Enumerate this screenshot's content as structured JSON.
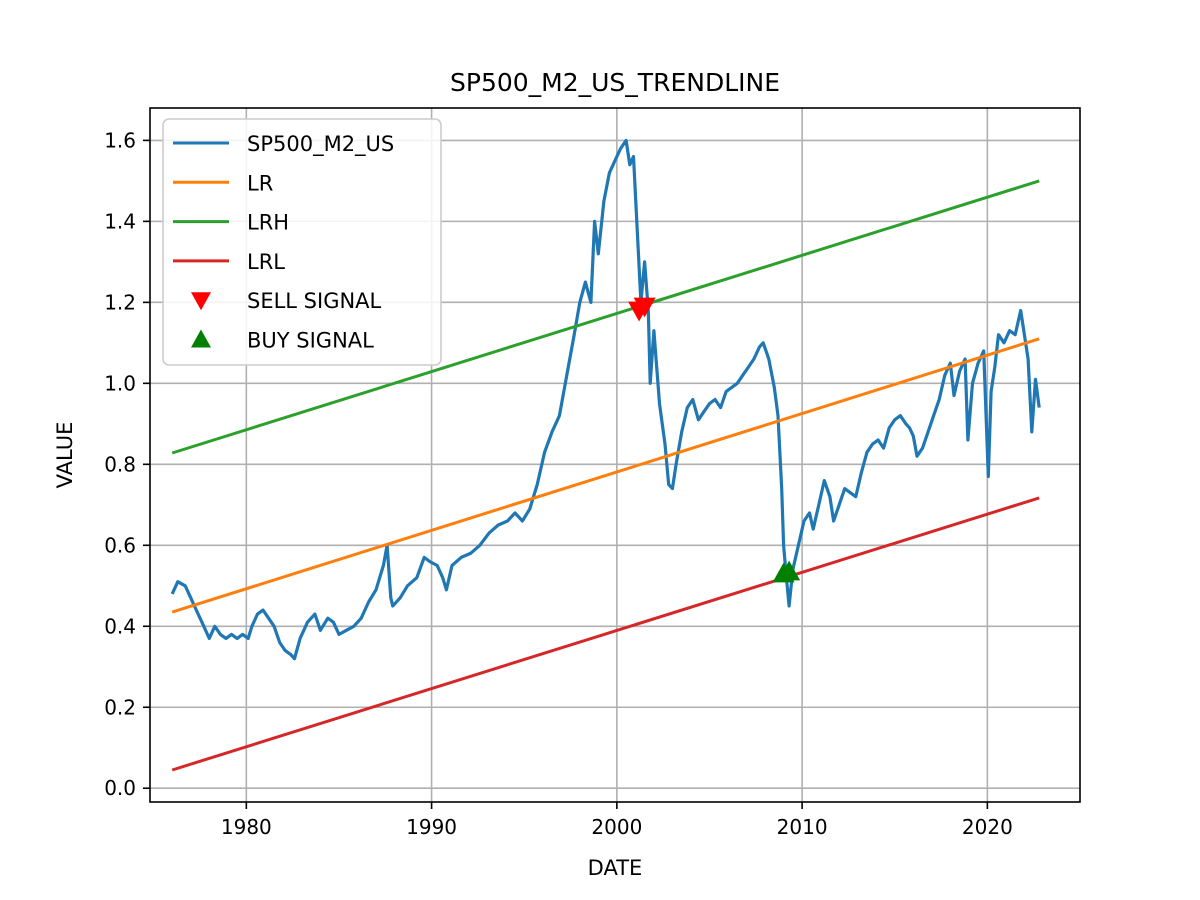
{
  "chart_data": {
    "type": "line",
    "title": "SP500_M2_US_TRENDLINE",
    "xlabel": "DATE",
    "ylabel": "VALUE",
    "xlim": [
      1974.8,
      2025.0
    ],
    "ylim": [
      -0.034,
      1.68
    ],
    "x_ticks": [
      1980,
      1990,
      2000,
      2010,
      2020
    ],
    "y_ticks": [
      0.0,
      0.2,
      0.4,
      0.6,
      0.8,
      1.0,
      1.2,
      1.4,
      1.6
    ],
    "y_tick_labels": [
      "0.0",
      "0.2",
      "0.4",
      "0.6",
      "0.8",
      "1.0",
      "1.2",
      "1.4",
      "1.6"
    ],
    "grid": true,
    "legend_position": "top-left",
    "series": [
      {
        "name": "SP500_M2_US",
        "color": "#1f77b4",
        "kind": "line",
        "x": [
          1976.0,
          1976.3,
          1976.7,
          1977.0,
          1977.3,
          1977.6,
          1978.0,
          1978.3,
          1978.6,
          1978.9,
          1979.2,
          1979.5,
          1979.8,
          1980.1,
          1980.3,
          1980.6,
          1980.9,
          1981.2,
          1981.5,
          1981.8,
          1982.1,
          1982.4,
          1982.6,
          1982.9,
          1983.3,
          1983.7,
          1984.0,
          1984.4,
          1984.7,
          1985.0,
          1985.4,
          1985.8,
          1986.2,
          1986.6,
          1987.0,
          1987.4,
          1987.6,
          1987.8,
          1987.9,
          1988.3,
          1988.7,
          1989.2,
          1989.6,
          1989.9,
          1990.3,
          1990.6,
          1990.8,
          1991.1,
          1991.6,
          1992.1,
          1992.6,
          1993.1,
          1993.6,
          1994.1,
          1994.5,
          1994.9,
          1995.3,
          1995.7,
          1996.1,
          1996.5,
          1996.9,
          1997.3,
          1997.7,
          1998.0,
          1998.3,
          1998.6,
          1998.8,
          1999.0,
          1999.3,
          1999.6,
          1999.9,
          2000.2,
          2000.5,
          2000.7,
          2000.9,
          2001.1,
          2001.3,
          2001.5,
          2001.7,
          2001.8,
          2002.0,
          2002.3,
          2002.6,
          2002.8,
          2003.0,
          2003.2,
          2003.5,
          2003.8,
          2004.1,
          2004.4,
          2004.7,
          2005.0,
          2005.3,
          2005.6,
          2005.9,
          2006.2,
          2006.5,
          2006.8,
          2007.1,
          2007.4,
          2007.7,
          2007.9,
          2008.2,
          2008.5,
          2008.7,
          2008.9,
          2009.0,
          2009.15,
          2009.3,
          2009.5,
          2009.8,
          2010.1,
          2010.4,
          2010.6,
          2010.9,
          2011.2,
          2011.5,
          2011.7,
          2012.0,
          2012.3,
          2012.6,
          2012.9,
          2013.2,
          2013.5,
          2013.8,
          2014.1,
          2014.4,
          2014.7,
          2015.0,
          2015.3,
          2015.6,
          2015.8,
          2016.0,
          2016.2,
          2016.5,
          2016.8,
          2017.1,
          2017.4,
          2017.7,
          2018.0,
          2018.2,
          2018.5,
          2018.8,
          2018.95,
          2019.2,
          2019.5,
          2019.8,
          2020.05,
          2020.2,
          2020.4,
          2020.6,
          2020.9,
          2021.2,
          2021.5,
          2021.8,
          2022.0,
          2022.2,
          2022.4,
          2022.6,
          2022.8
        ],
        "y": [
          0.48,
          0.51,
          0.5,
          0.47,
          0.44,
          0.41,
          0.37,
          0.4,
          0.38,
          0.37,
          0.38,
          0.37,
          0.38,
          0.37,
          0.4,
          0.43,
          0.44,
          0.42,
          0.4,
          0.36,
          0.34,
          0.33,
          0.32,
          0.37,
          0.41,
          0.43,
          0.39,
          0.42,
          0.41,
          0.38,
          0.39,
          0.4,
          0.42,
          0.46,
          0.49,
          0.55,
          0.6,
          0.47,
          0.45,
          0.47,
          0.5,
          0.52,
          0.57,
          0.56,
          0.55,
          0.52,
          0.49,
          0.55,
          0.57,
          0.58,
          0.6,
          0.63,
          0.65,
          0.66,
          0.68,
          0.66,
          0.69,
          0.75,
          0.83,
          0.88,
          0.92,
          1.02,
          1.12,
          1.2,
          1.25,
          1.2,
          1.4,
          1.32,
          1.45,
          1.52,
          1.55,
          1.58,
          1.6,
          1.54,
          1.56,
          1.38,
          1.2,
          1.3,
          1.18,
          1.0,
          1.13,
          0.95,
          0.85,
          0.75,
          0.74,
          0.8,
          0.88,
          0.94,
          0.96,
          0.91,
          0.93,
          0.95,
          0.96,
          0.94,
          0.98,
          0.99,
          1.0,
          1.02,
          1.04,
          1.06,
          1.09,
          1.1,
          1.06,
          0.99,
          0.92,
          0.74,
          0.6,
          0.52,
          0.45,
          0.54,
          0.6,
          0.66,
          0.68,
          0.64,
          0.7,
          0.76,
          0.72,
          0.66,
          0.7,
          0.74,
          0.73,
          0.72,
          0.78,
          0.83,
          0.85,
          0.86,
          0.84,
          0.89,
          0.91,
          0.92,
          0.9,
          0.89,
          0.87,
          0.82,
          0.84,
          0.88,
          0.92,
          0.96,
          1.02,
          1.05,
          0.97,
          1.03,
          1.06,
          0.86,
          1.0,
          1.05,
          1.08,
          0.77,
          0.98,
          1.04,
          1.12,
          1.1,
          1.13,
          1.12,
          1.18,
          1.12,
          1.06,
          0.88,
          1.01,
          0.94
        ]
      },
      {
        "name": "LR",
        "color": "#ff7f0e",
        "kind": "line",
        "x": [
          1976.0,
          2022.8
        ],
        "y": [
          0.435,
          1.11
        ]
      },
      {
        "name": "LRH",
        "color": "#2ca02c",
        "kind": "line",
        "x": [
          1976.0,
          2022.8
        ],
        "y": [
          0.828,
          1.5
        ]
      },
      {
        "name": "LRL",
        "color": "#d62728",
        "kind": "line",
        "x": [
          1976.0,
          2022.8
        ],
        "y": [
          0.045,
          0.717
        ]
      },
      {
        "name": "SELL SIGNAL",
        "color": "#ff0000",
        "kind": "marker",
        "marker": "triangle-down",
        "x": [
          2001.2,
          2001.5
        ],
        "y": [
          1.18,
          1.19
        ]
      },
      {
        "name": "BUY SIGNAL",
        "color": "#008000",
        "kind": "marker",
        "marker": "triangle-up",
        "x": [
          2009.0,
          2009.3
        ],
        "y": [
          0.53,
          0.535
        ]
      }
    ]
  }
}
